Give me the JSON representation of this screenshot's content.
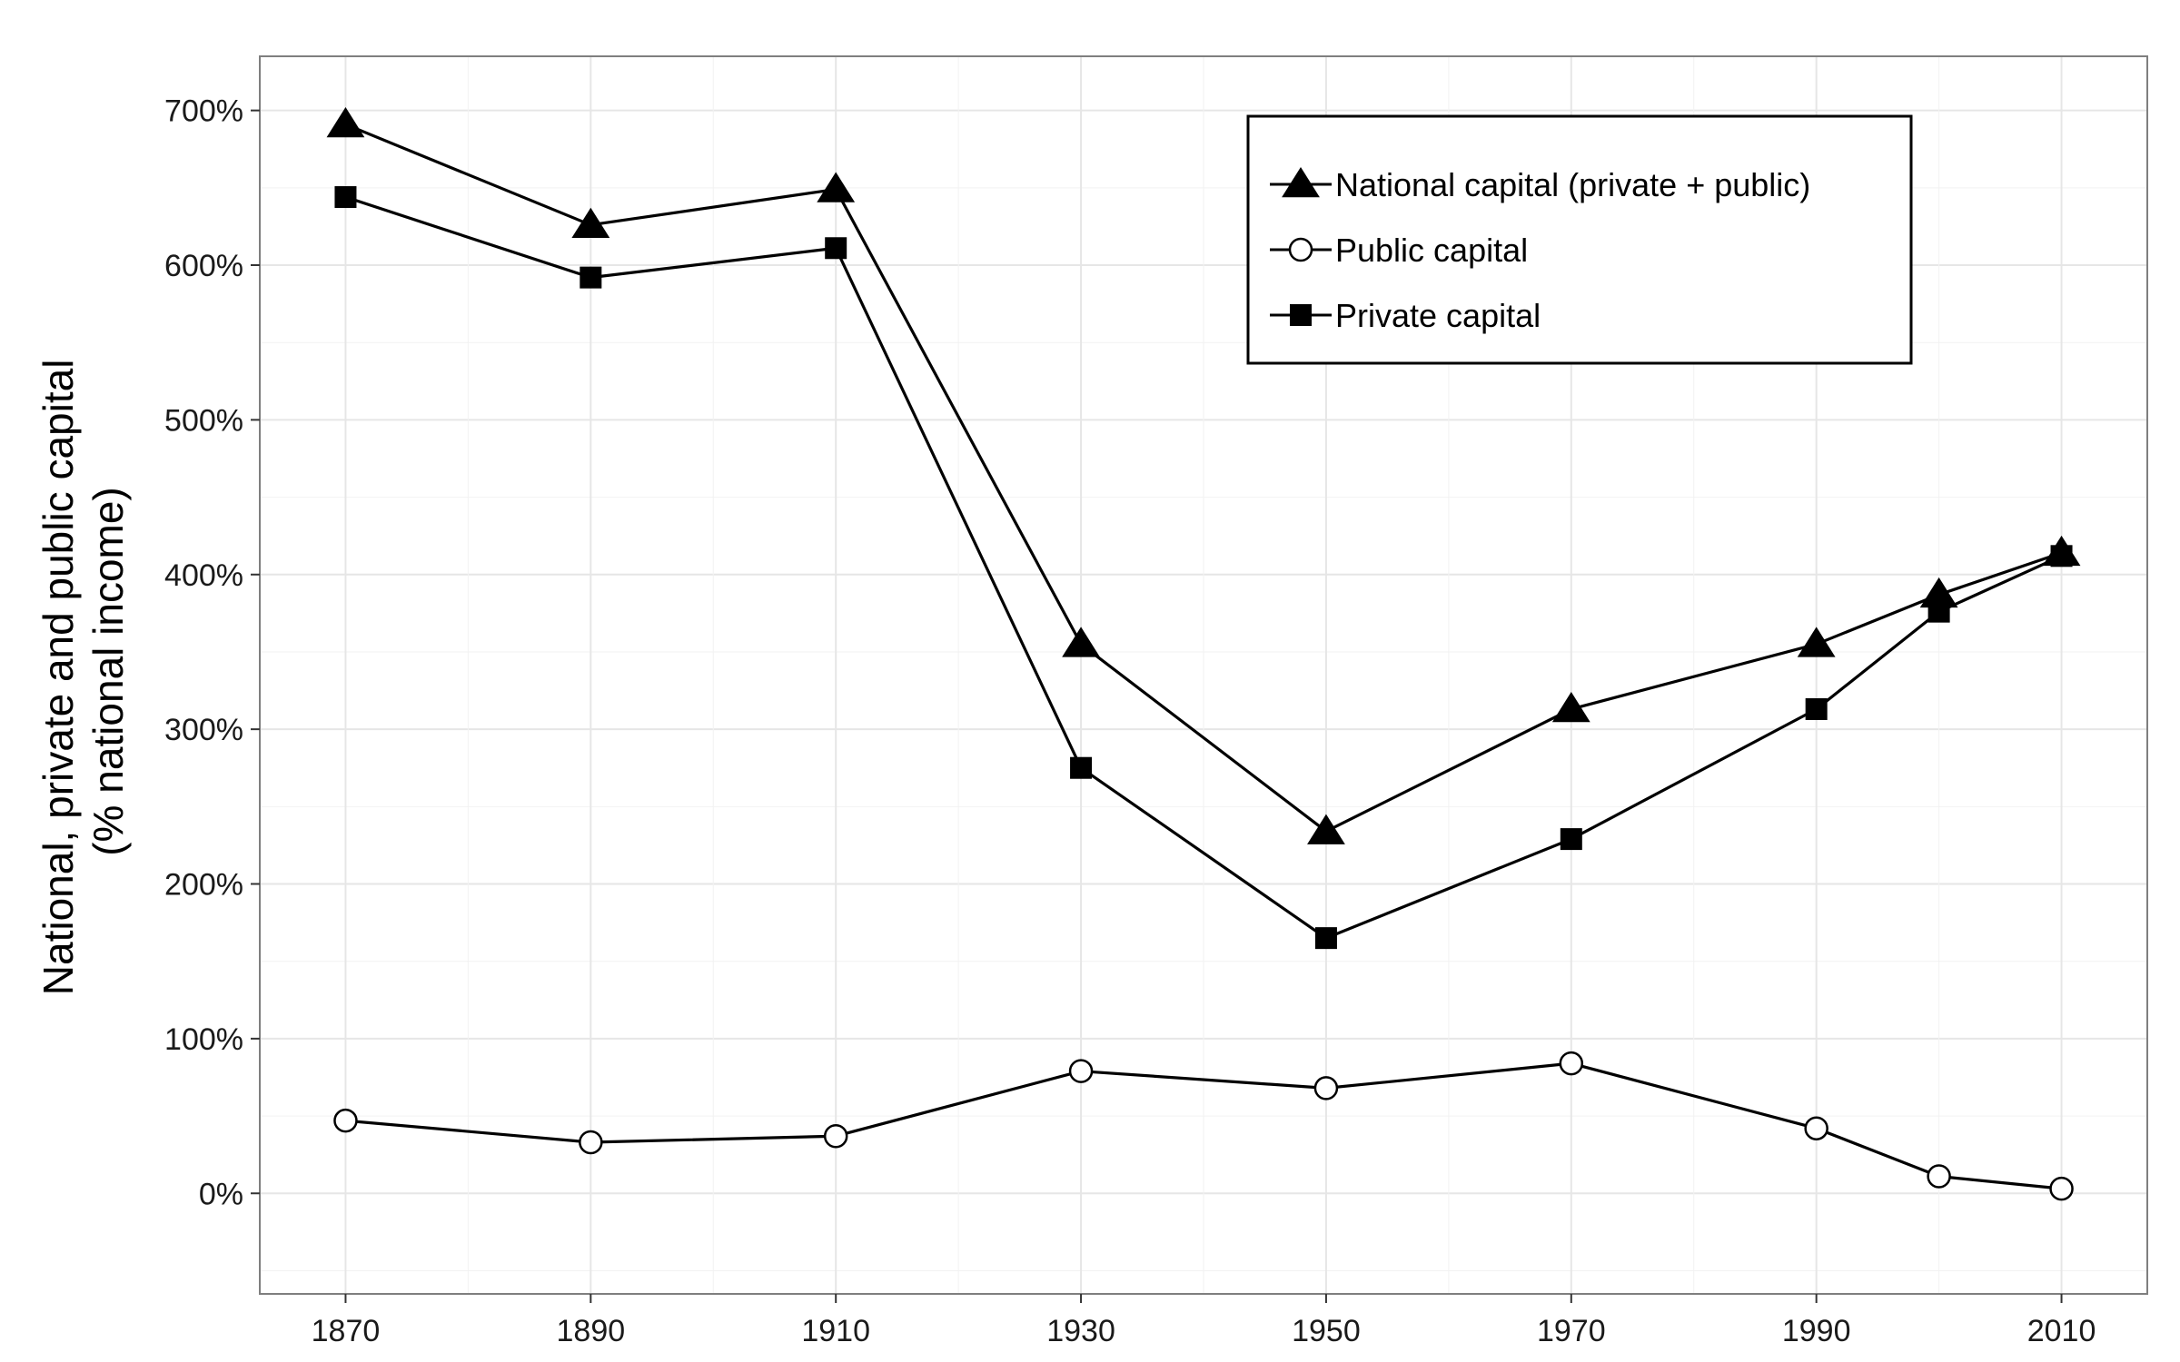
{
  "chart_data": {
    "type": "line",
    "title": "",
    "xlabel": "",
    "ylabel_lines": [
      "National, private and public capital",
      "(% national income)"
    ],
    "x": [
      1870,
      1890,
      1910,
      1930,
      1950,
      1970,
      1990,
      2000,
      2010
    ],
    "xlim": [
      1863,
      2017
    ],
    "ylim": [
      -65,
      735
    ],
    "x_ticks": [
      1870,
      1890,
      1910,
      1930,
      1950,
      1970,
      1990,
      2010
    ],
    "x_tick_labels": [
      "1870",
      "1890",
      "1910",
      "1930",
      "1950",
      "1970",
      "1990",
      "2010"
    ],
    "y_ticks": [
      0,
      100,
      200,
      300,
      400,
      500,
      600,
      700
    ],
    "y_tick_labels": [
      "0%",
      "100%",
      "200%",
      "300%",
      "400%",
      "500%",
      "600%",
      "700%"
    ],
    "grid": true,
    "legend_position": "top-right",
    "series": [
      {
        "name": "National capital (private + public)",
        "marker": "triangle",
        "values": [
          691,
          626,
          649,
          355,
          234,
          313,
          355,
          387,
          414
        ]
      },
      {
        "name": "Public capital",
        "marker": "open-circle",
        "values": [
          47,
          33,
          37,
          79,
          68,
          84,
          42,
          11,
          3
        ]
      },
      {
        "name": "Private capital",
        "marker": "square",
        "values": [
          644,
          592,
          611,
          275,
          165,
          229,
          313,
          376,
          412
        ]
      }
    ],
    "colors": {
      "line": "#000000",
      "grid": "#e6e6e6",
      "panel_border": "#7f7f7f",
      "background": "#ffffff"
    }
  }
}
